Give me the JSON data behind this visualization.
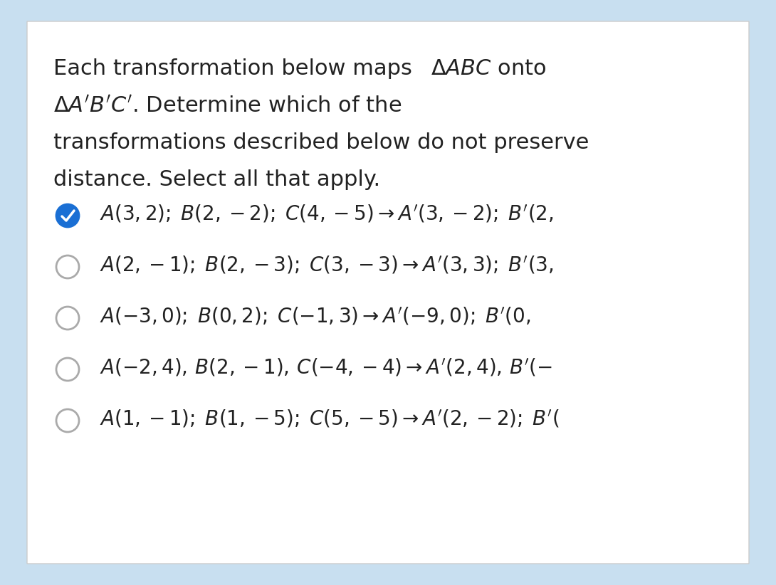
{
  "bg_outer": "#c8dff0",
  "bg_inner": "#ffffff",
  "title_lines": [
    "Each transformation below maps △\\textit{ABC} onto",
    "△\\textit{A’B’C’}. Determine which of the",
    "transformations described below do not preserve",
    "distance. Select all that apply."
  ],
  "items": [
    {
      "checked": true,
      "text": "$A(3, 2);\\; B(2, -2);\\; C(4, -5) \\rightarrow A'(3, -2);\\; B'(2,$"
    },
    {
      "checked": false,
      "text": "$A(2, -1);\\; B(2, -3);\\; C(3, -3) \\rightarrow A'(3, 3);\\; B'(3,$"
    },
    {
      "checked": false,
      "text": "$A(-3, 0);\\; B(0, 2);\\; C(-1, 3) \\rightarrow A'(-9, 0);\\; B'(0,$"
    },
    {
      "checked": false,
      "text": "$A(-2, 4),\\, B(2, -1),\\, C(-4, -4) \\rightarrow A'(2, 4),\\, B'(-$"
    },
    {
      "checked": false,
      "text": "$A(1, -1);\\; B(1, -5);\\; C(5, -5) \\rightarrow A'(2, -2);\\; B'($"
    }
  ],
  "check_color": "#1a6fd4",
  "circle_color": "#aaaaaa",
  "text_color": "#222222",
  "title_fontsize": 22,
  "item_fontsize": 20
}
